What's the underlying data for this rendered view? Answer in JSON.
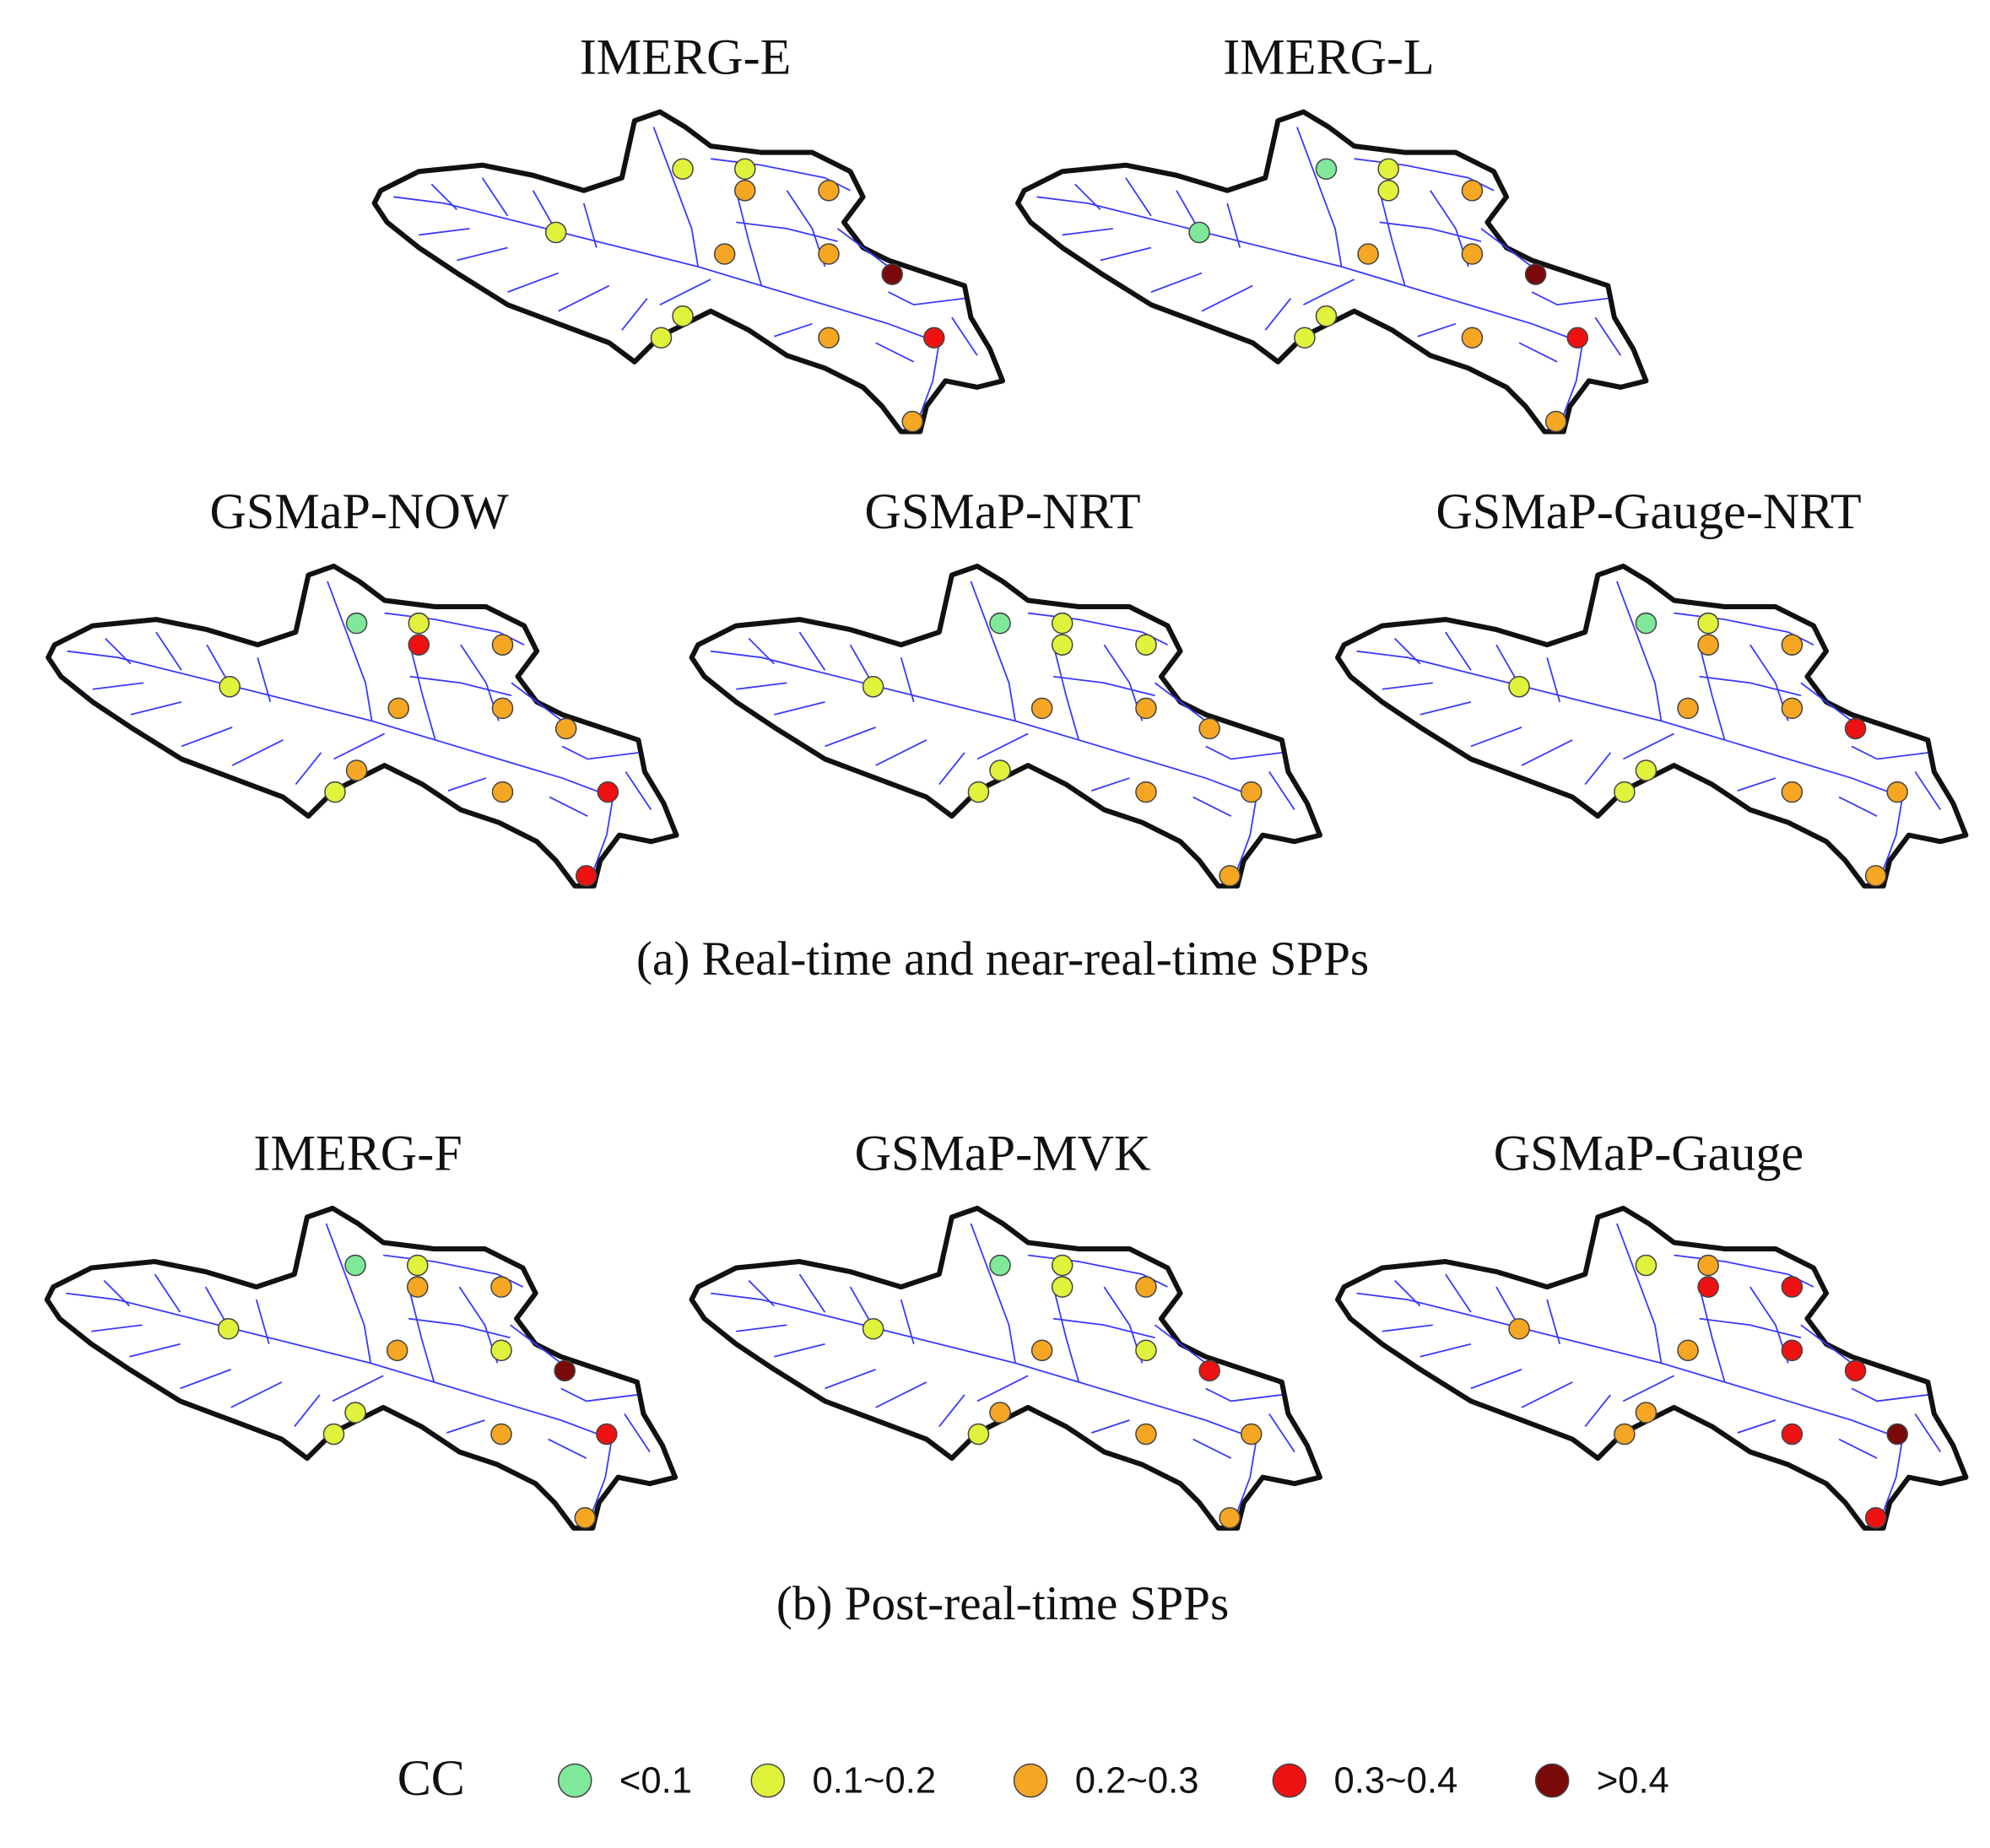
{
  "panels": [
    {
      "title": "IMERG-E",
      "stations": [
        "0.1~0.2",
        "0.1~0.2",
        "0.2~0.3",
        "0.2~0.3",
        "0.1~0.2",
        "0.2~0.3",
        "0.2~0.3",
        ">0.4",
        "0.1~0.2",
        "0.1~0.2",
        "0.2~0.3",
        "0.3~0.4",
        "0.2~0.3"
      ]
    },
    {
      "title": "IMERG-L",
      "stations": [
        "<0.1",
        "0.1~0.2",
        "0.1~0.2",
        "0.2~0.3",
        "<0.1",
        "0.2~0.3",
        "0.2~0.3",
        ">0.4",
        "0.1~0.2",
        "0.1~0.2",
        "0.2~0.3",
        "0.3~0.4",
        "0.2~0.3"
      ]
    },
    {
      "title": "GSMaP-NOW",
      "stations": [
        "<0.1",
        "0.1~0.2",
        "0.3~0.4",
        "0.2~0.3",
        "0.1~0.2",
        "0.2~0.3",
        "0.2~0.3",
        "0.2~0.3",
        "0.2~0.3",
        "0.1~0.2",
        "0.2~0.3",
        "0.3~0.4",
        "0.3~0.4"
      ]
    },
    {
      "title": "GSMaP-NRT",
      "stations": [
        "<0.1",
        "0.1~0.2",
        "0.1~0.2",
        "0.1~0.2",
        "0.1~0.2",
        "0.2~0.3",
        "0.2~0.3",
        "0.2~0.3",
        "0.1~0.2",
        "0.1~0.2",
        "0.2~0.3",
        "0.2~0.3",
        "0.2~0.3"
      ]
    },
    {
      "title": "GSMaP-Gauge-NRT",
      "stations": [
        "<0.1",
        "0.1~0.2",
        "0.2~0.3",
        "0.2~0.3",
        "0.1~0.2",
        "0.2~0.3",
        "0.2~0.3",
        "0.3~0.4",
        "0.1~0.2",
        "0.1~0.2",
        "0.2~0.3",
        "0.2~0.3",
        "0.2~0.3"
      ]
    },
    {
      "title": "IMERG-F",
      "stations": [
        "<0.1",
        "0.1~0.2",
        "0.2~0.3",
        "0.2~0.3",
        "0.1~0.2",
        "0.2~0.3",
        "0.1~0.2",
        ">0.4",
        "0.1~0.2",
        "0.1~0.2",
        "0.2~0.3",
        "0.3~0.4",
        "0.2~0.3"
      ]
    },
    {
      "title": "GSMaP-MVK",
      "stations": [
        "<0.1",
        "0.1~0.2",
        "0.1~0.2",
        "0.2~0.3",
        "0.1~0.2",
        "0.2~0.3",
        "0.1~0.2",
        "0.3~0.4",
        "0.2~0.3",
        "0.1~0.2",
        "0.2~0.3",
        "0.2~0.3",
        "0.2~0.3"
      ]
    },
    {
      "title": "GSMaP-Gauge",
      "stations": [
        "0.1~0.2",
        "0.2~0.3",
        "0.3~0.4",
        "0.3~0.4",
        "0.2~0.3",
        "0.2~0.3",
        "0.3~0.4",
        "0.3~0.4",
        "0.2~0.3",
        "0.2~0.3",
        "0.3~0.4",
        ">0.4",
        "0.3~0.4"
      ]
    }
  ],
  "captions": [
    "(a) Real-time and near-real-time SPPs",
    "(b) Post-real-time SPPs"
  ],
  "legend": {
    "title": "CC",
    "classes": [
      {
        "label": "<0.1",
        "color": "#7fe89b"
      },
      {
        "label": "0.1~0.2",
        "color": "#e0f23c"
      },
      {
        "label": "0.2~0.3",
        "color": "#f5a623"
      },
      {
        "label": "0.3~0.4",
        "color": "#ee1111"
      },
      {
        "label": ">0.4",
        "color": "#7a0a0a"
      }
    ]
  }
}
